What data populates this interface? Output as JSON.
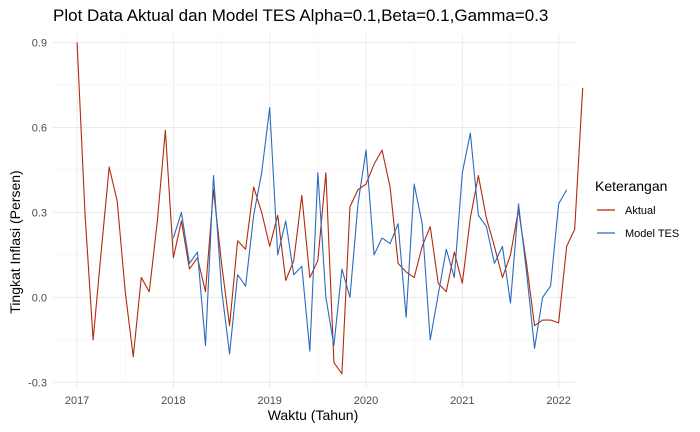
{
  "chart_data": {
    "type": "line",
    "title": "Plot Data Aktual dan Model TES Alpha=0.1,Beta=0.1,Gamma=0.3",
    "xlabel": "Waktu (Tahun)",
    "ylabel": "Tingkat Inflasi (Persen)",
    "xlim": [
      2016.75,
      2022.17
    ],
    "ylim": [
      -0.32,
      0.93
    ],
    "x_ticks": [
      2017,
      2018,
      2019,
      2020,
      2021,
      2022
    ],
    "x_tick_labels": [
      "2017",
      "2018",
      "2019",
      "2020",
      "2021",
      "2022"
    ],
    "y_ticks": [
      -0.3,
      0.0,
      0.3,
      0.6,
      0.9
    ],
    "y_tick_labels": [
      "-0.3",
      "0.0",
      "0.3",
      "0.6",
      "0.9"
    ],
    "legend": {
      "title": "Keterangan",
      "position": "right"
    },
    "series": [
      {
        "name": "Aktual",
        "color": "#b22a0c",
        "start": 2017,
        "step": 0.0833333,
        "values": [
          0.9,
          0.29,
          -0.15,
          0.16,
          0.46,
          0.34,
          0.02,
          -0.21,
          0.07,
          0.02,
          0.27,
          0.59,
          0.14,
          0.27,
          0.1,
          0.14,
          0.02,
          0.38,
          0.12,
          -0.1,
          0.2,
          0.17,
          0.39,
          0.3,
          0.18,
          0.29,
          0.06,
          0.13,
          0.36,
          0.07,
          0.13,
          0.44,
          -0.23,
          -0.27,
          0.32,
          0.38,
          0.4,
          0.47,
          0.52,
          0.39,
          0.12,
          0.09,
          0.07,
          0.18,
          0.25,
          0.05,
          0.02,
          0.16,
          0.05,
          0.28,
          0.43,
          0.28,
          0.18,
          0.07,
          0.15,
          0.31,
          0.12,
          -0.1,
          -0.08,
          -0.08,
          -0.09,
          0.18,
          0.24,
          0.74
        ]
      },
      {
        "name": "Model TES",
        "color": "#2a6bc0",
        "start": 2018,
        "step": 0.0833333,
        "values": [
          0.21,
          0.3,
          0.12,
          0.16,
          -0.17,
          0.43,
          0.03,
          -0.2,
          0.08,
          0.04,
          0.29,
          0.44,
          0.67,
          0.15,
          0.27,
          0.08,
          0.11,
          -0.19,
          0.44,
          0.0,
          -0.17,
          0.1,
          0.0,
          0.33,
          0.52,
          0.15,
          0.21,
          0.19,
          0.26,
          -0.07,
          0.4,
          0.26,
          -0.15,
          0.01,
          0.17,
          0.07,
          0.44,
          0.58,
          0.29,
          0.25,
          0.12,
          0.18,
          -0.02,
          0.33,
          0.09,
          -0.18,
          0.0,
          0.04,
          0.33,
          0.38
        ]
      }
    ]
  }
}
